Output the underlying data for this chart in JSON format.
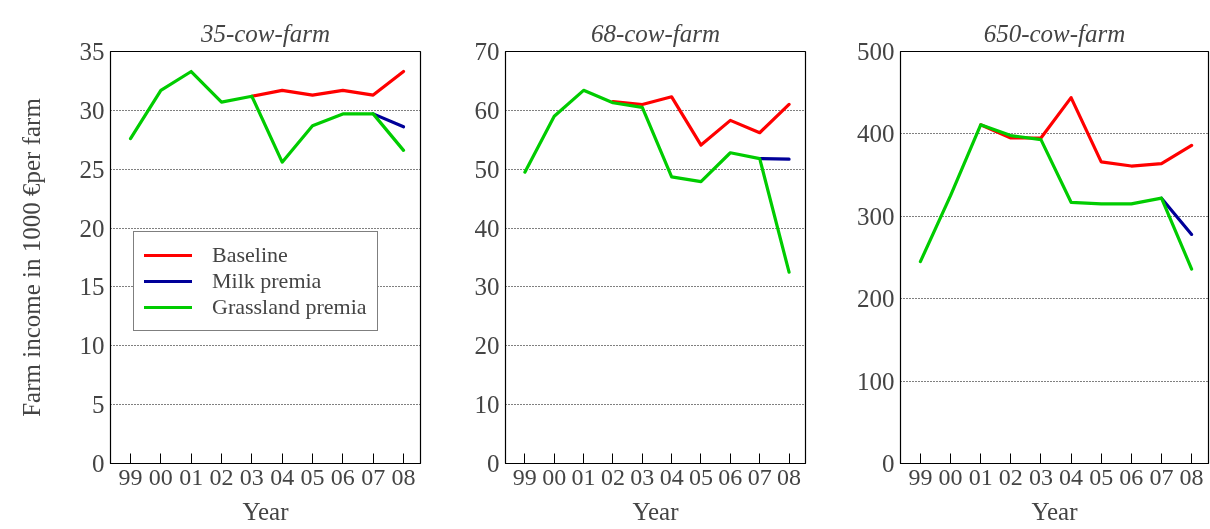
{
  "chart_data": [
    {
      "type": "line",
      "title": "35-cow-farm",
      "xlabel": "Year",
      "ylabel": "Farm income in 1000 €per farm",
      "categories": [
        "99",
        "00",
        "01",
        "02",
        "03",
        "04",
        "05",
        "06",
        "07",
        "08"
      ],
      "series": [
        {
          "name": "Baseline",
          "color": "#ff0000",
          "values": [
            null,
            null,
            null,
            null,
            31.2,
            31.7,
            31.3,
            31.7,
            31.3,
            33.3
          ]
        },
        {
          "name": "Milk premia",
          "color": "#000099",
          "values": [
            null,
            null,
            null,
            null,
            null,
            null,
            null,
            null,
            29.7,
            28.6
          ]
        },
        {
          "name": "Grassland premia",
          "color": "#00cc00",
          "values": [
            27.6,
            31.7,
            33.3,
            30.7,
            31.2,
            25.6,
            28.7,
            29.7,
            29.7,
            26.6
          ]
        }
      ],
      "ylim": [
        0,
        35
      ],
      "yticks": [
        0,
        5,
        10,
        15,
        20,
        25,
        30,
        35
      ],
      "grid": "y",
      "legend": "left"
    },
    {
      "type": "line",
      "title": "68-cow-farm",
      "xlabel": "Year",
      "categories": [
        "99",
        "00",
        "01",
        "02",
        "03",
        "04",
        "05",
        "06",
        "07",
        "08"
      ],
      "series": [
        {
          "color": "#ff0000",
          "values": [
            null,
            null,
            null,
            61.5,
            61.0,
            62.3,
            54.1,
            58.3,
            56.2,
            61.0
          ]
        },
        {
          "color": "#000099",
          "values": [
            null,
            null,
            null,
            null,
            null,
            null,
            null,
            null,
            51.8,
            51.7
          ]
        },
        {
          "color": "#00cc00",
          "values": [
            49.5,
            59.0,
            63.4,
            61.3,
            60.5,
            48.7,
            47.9,
            52.8,
            51.8,
            32.5
          ]
        }
      ],
      "ylim": [
        0,
        70
      ],
      "yticks": [
        0,
        10,
        20,
        30,
        40,
        50,
        60,
        70
      ],
      "grid": "y"
    },
    {
      "type": "line",
      "title": "650-cow-farm",
      "xlabel": "Year",
      "categories": [
        "99",
        "00",
        "01",
        "02",
        "03",
        "04",
        "05",
        "06",
        "07",
        "08"
      ],
      "series": [
        {
          "color": "#ff0000",
          "values": [
            null,
            null,
            411,
            395,
            395,
            444,
            366,
            361,
            364,
            386
          ]
        },
        {
          "color": "#000099",
          "values": [
            null,
            null,
            null,
            null,
            null,
            null,
            null,
            null,
            322,
            278
          ]
        },
        {
          "color": "#00cc00",
          "values": [
            245,
            325,
            411,
            398,
            393,
            317,
            315,
            315,
            322,
            236
          ]
        }
      ],
      "ylim": [
        0,
        500
      ],
      "yticks": [
        0,
        100,
        200,
        300,
        400,
        500
      ],
      "grid": "y"
    }
  ]
}
